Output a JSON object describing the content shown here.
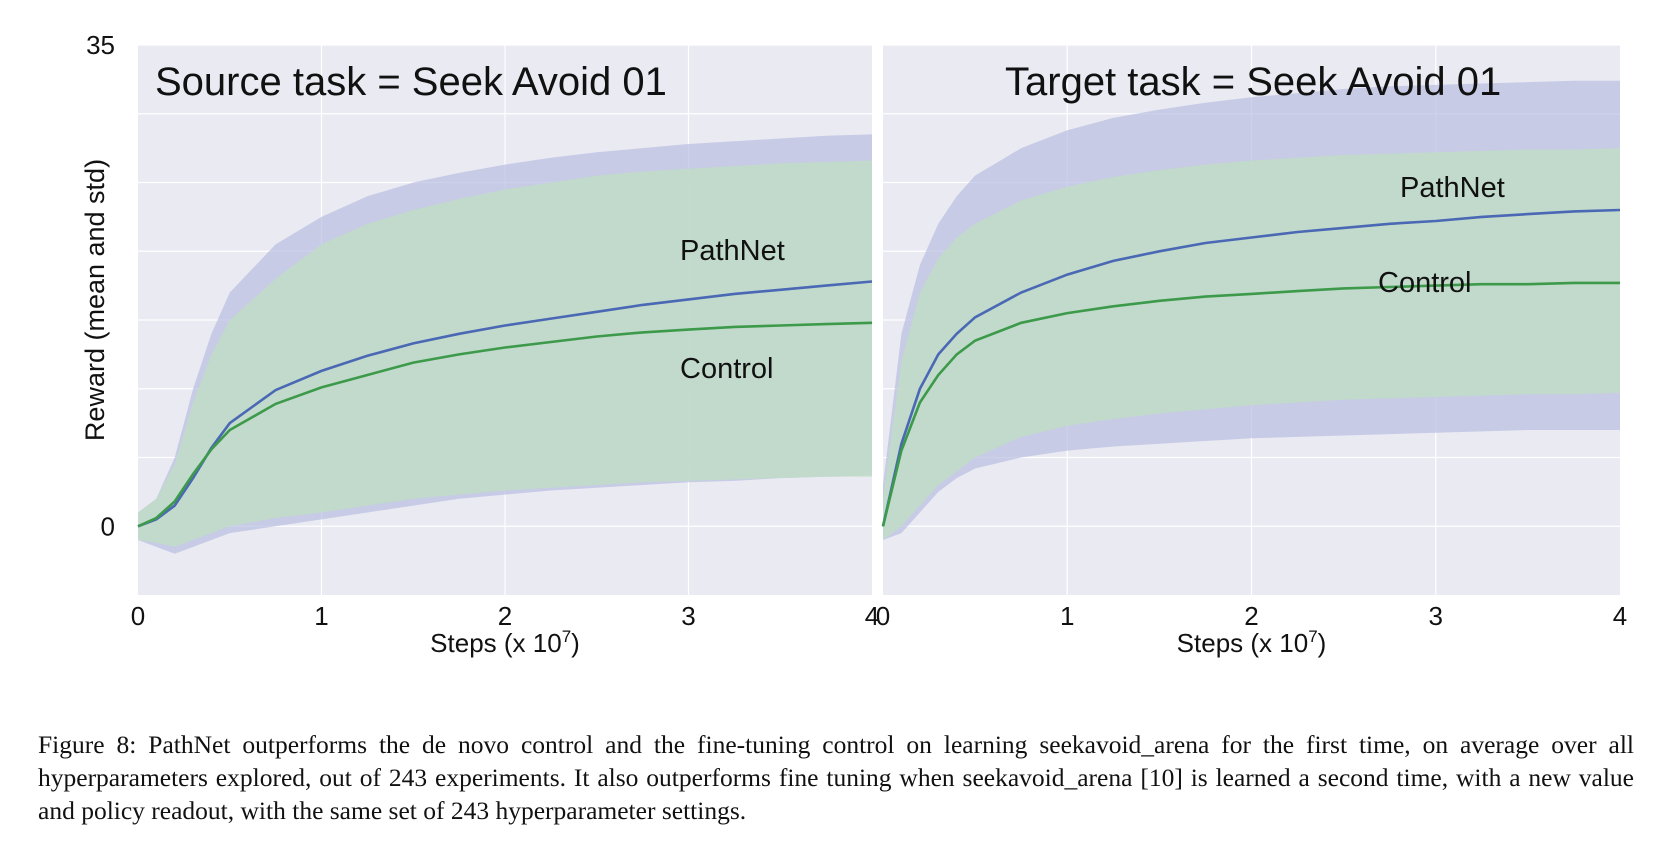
{
  "chart_data": [
    {
      "type": "line",
      "title": "Source task = Seek Avoid 01",
      "xlabel": "Steps (x 10",
      "xlabel_exp": "7",
      "xlabel_close": ")",
      "ylabel": "Reward (mean and std)",
      "xlim": [
        0,
        4
      ],
      "ylim": [
        -5,
        35
      ],
      "x_ticks": [
        "0",
        "1",
        "2",
        "3",
        "4"
      ],
      "y_ticks": [
        "0",
        "35"
      ],
      "grid": true,
      "x": [
        0,
        0.1,
        0.2,
        0.3,
        0.4,
        0.5,
        0.75,
        1.0,
        1.25,
        1.5,
        1.75,
        2.0,
        2.25,
        2.5,
        2.75,
        3.0,
        3.25,
        3.5,
        3.75,
        4.0
      ],
      "series": [
        {
          "name": "PathNet",
          "color": "#4a68b4",
          "band_color": "#b8bde0",
          "mean": [
            0,
            0.5,
            1.5,
            3.5,
            5.7,
            7.5,
            9.9,
            11.3,
            12.4,
            13.3,
            14.0,
            14.6,
            15.1,
            15.6,
            16.1,
            16.5,
            16.9,
            17.2,
            17.5,
            17.8
          ],
          "upper": [
            1,
            2,
            5,
            10,
            14,
            17,
            20.5,
            22.5,
            24,
            25,
            25.7,
            26.3,
            26.8,
            27.2,
            27.5,
            27.8,
            28,
            28.2,
            28.4,
            28.5
          ],
          "lower": [
            -1,
            -1.5,
            -2,
            -1.5,
            -1,
            -0.5,
            0,
            0.5,
            1,
            1.5,
            2,
            2.3,
            2.6,
            2.8,
            3,
            3.2,
            3.3,
            3.5,
            3.6,
            3.7
          ]
        },
        {
          "name": "Control",
          "color": "#3d9a4a",
          "band_color": "#bfe0c1",
          "mean": [
            0,
            0.6,
            1.8,
            3.8,
            5.6,
            7.0,
            8.9,
            10.1,
            11.0,
            11.9,
            12.5,
            13.0,
            13.4,
            13.8,
            14.1,
            14.3,
            14.5,
            14.6,
            14.7,
            14.8
          ],
          "upper": [
            1,
            2,
            4.5,
            9,
            12.5,
            15,
            18,
            20.5,
            22,
            23,
            23.8,
            24.5,
            25,
            25.5,
            25.8,
            26,
            26.2,
            26.4,
            26.5,
            26.6
          ],
          "lower": [
            -1,
            -1.2,
            -1.5,
            -1,
            -0.5,
            0,
            0.6,
            1,
            1.5,
            2,
            2.3,
            2.6,
            2.8,
            3,
            3.2,
            3.3,
            3.4,
            3.5,
            3.6,
            3.6
          ]
        }
      ]
    },
    {
      "type": "line",
      "title": "Target task = Seek Avoid 01",
      "xlabel": "Steps (x 10",
      "xlabel_exp": "7",
      "xlabel_close": ")",
      "ylabel": "",
      "xlim": [
        0,
        4
      ],
      "ylim": [
        -5,
        35
      ],
      "x_ticks": [
        "0",
        "1",
        "2",
        "3",
        "4"
      ],
      "y_ticks": [],
      "grid": true,
      "x": [
        0,
        0.1,
        0.2,
        0.3,
        0.4,
        0.5,
        0.75,
        1.0,
        1.25,
        1.5,
        1.75,
        2.0,
        2.25,
        2.5,
        2.75,
        3.0,
        3.25,
        3.5,
        3.75,
        4.0
      ],
      "series": [
        {
          "name": "PathNet",
          "color": "#4a68b4",
          "band_color": "#b8bde0",
          "mean": [
            0,
            6,
            10,
            12.5,
            14,
            15.2,
            17,
            18.3,
            19.3,
            20.0,
            20.6,
            21.0,
            21.4,
            21.7,
            22.0,
            22.2,
            22.5,
            22.7,
            22.9,
            23.0
          ],
          "upper": [
            3,
            14,
            19,
            22,
            24,
            25.5,
            27.5,
            28.8,
            29.7,
            30.3,
            30.8,
            31.2,
            31.5,
            31.8,
            32,
            32.1,
            32.2,
            32.3,
            32.4,
            32.4
          ],
          "lower": [
            -1,
            -0.5,
            1,
            2.5,
            3.5,
            4.2,
            5,
            5.5,
            5.8,
            6,
            6.2,
            6.4,
            6.5,
            6.6,
            6.7,
            6.8,
            6.9,
            7,
            7,
            7
          ]
        },
        {
          "name": "Control",
          "color": "#3d9a4a",
          "band_color": "#bfe0c1",
          "mean": [
            0,
            5.5,
            9,
            11,
            12.5,
            13.5,
            14.8,
            15.5,
            16.0,
            16.4,
            16.7,
            16.9,
            17.1,
            17.3,
            17.4,
            17.5,
            17.6,
            17.6,
            17.7,
            17.7
          ],
          "upper": [
            2,
            12,
            17,
            19.5,
            21,
            22,
            23.7,
            24.7,
            25.4,
            25.9,
            26.3,
            26.6,
            26.8,
            27,
            27.1,
            27.2,
            27.3,
            27.4,
            27.4,
            27.5
          ],
          "lower": [
            -1,
            0,
            1.5,
            3,
            4,
            5,
            6.5,
            7.3,
            7.8,
            8.2,
            8.5,
            8.8,
            9,
            9.2,
            9.3,
            9.4,
            9.5,
            9.6,
            9.6,
            9.7
          ]
        }
      ]
    }
  ],
  "caption": "Figure 8: PathNet outperforms the de novo control and the fine-tuning control on learning seekavoid_arena for the first time, on average over all hyperparameters explored, out of 243 experiments. It also outperforms fine tuning when seekavoid_arena [10] is learned a second time, with a new value and policy readout, with the same set of 243 hyperparameter settings."
}
